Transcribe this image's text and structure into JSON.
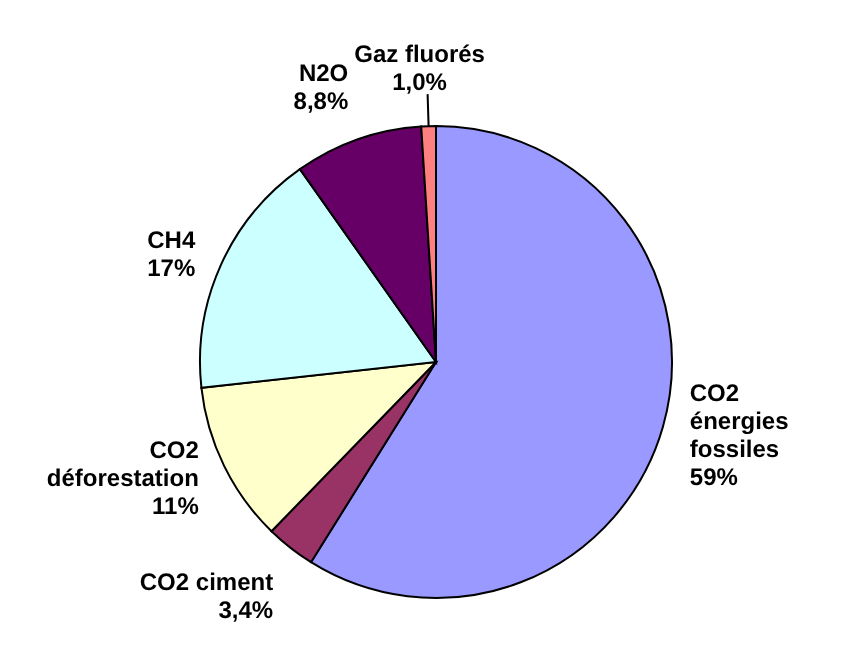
{
  "chart_data": {
    "type": "pie",
    "categories": [
      "CO2 énergies fossiles",
      "CO2 ciment",
      "CO2 déforestation",
      "CH4",
      "N2O",
      "Gaz fluorés"
    ],
    "values": [
      59,
      3.4,
      11,
      17,
      8.8,
      1.0
    ],
    "value_labels": [
      "59%",
      "3,4%",
      "11%",
      "17%",
      "8,8%",
      "1,0%"
    ],
    "colors": [
      "#9999ff",
      "#993366",
      "#ffffcc",
      "#ccffff",
      "#660066",
      "#ff8080"
    ]
  }
}
